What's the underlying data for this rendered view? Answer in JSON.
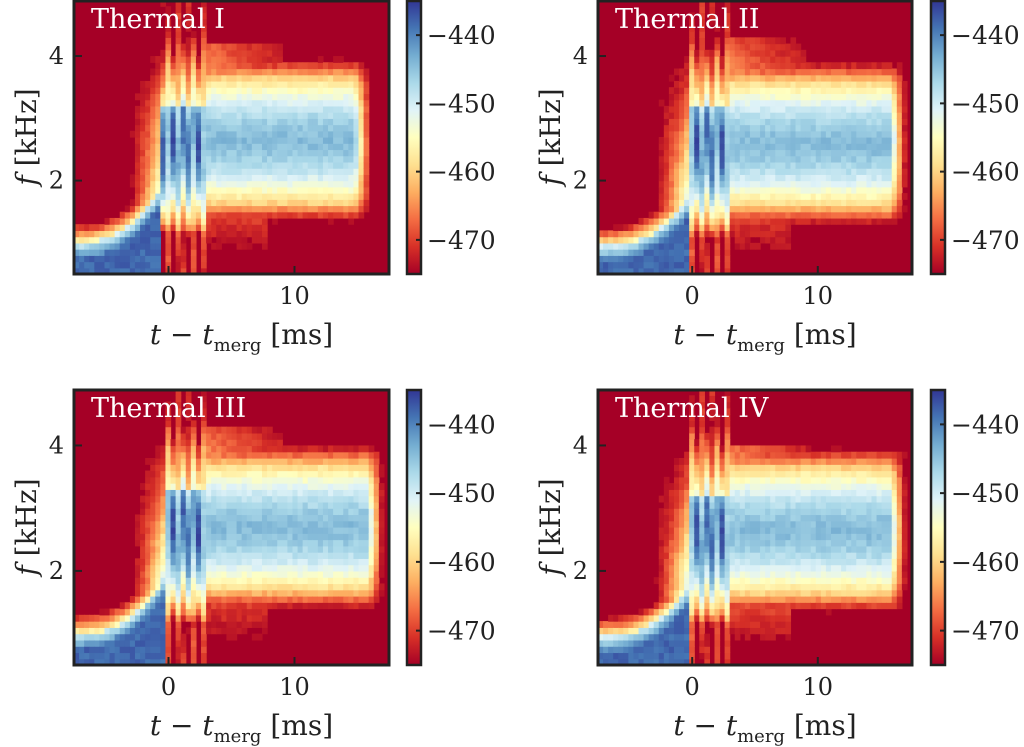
{
  "figure": {
    "colormap": [
      "#a50026",
      "#d73027",
      "#f46d43",
      "#fdae61",
      "#fee090",
      "#ffffbf",
      "#e0f3f8",
      "#abd9e9",
      "#74add1",
      "#4575b4",
      "#313695"
    ],
    "frame_color": "#222222"
  },
  "chart_data": [
    {
      "type": "heatmap",
      "title": "Thermal I",
      "xlabel_main": "t − t",
      "xlabel_sub": "merg",
      "xlabel_unit": "[ms]",
      "ylabel_main": "f",
      "ylabel_unit": "[kHz]",
      "xlim": [
        -7.5,
        17.5
      ],
      "ylim": [
        0.5,
        4.9
      ],
      "xticks": [
        0,
        10
      ],
      "xtick_labels": [
        "0",
        "10"
      ],
      "yticks": [
        2,
        4
      ],
      "ytick_labels": [
        "2",
        "4"
      ],
      "colorbar": {
        "range": [
          -475,
          -435
        ],
        "ticks": [
          -440,
          -450,
          -460,
          -470
        ],
        "tick_labels": [
          "−440",
          "−450",
          "−460",
          "−470"
        ]
      },
      "features": {
        "inspiral_start": 1.0,
        "inspiral_end": 1.9,
        "merger_time": -0.5,
        "post_center": 2.65,
        "post_halfwidth": 0.45,
        "lower_noise_edge": 1.9,
        "upper_noise_edge": 3.4,
        "burst_top": 4.2,
        "end_time": 16.0
      }
    },
    {
      "type": "heatmap",
      "title": "Thermal II",
      "xlabel_main": "t − t",
      "xlabel_sub": "merg",
      "xlabel_unit": "[ms]",
      "ylabel_main": "f",
      "ylabel_unit": "[kHz]",
      "xlim": [
        -7.5,
        17.5
      ],
      "ylim": [
        0.5,
        4.9
      ],
      "xticks": [
        0,
        10
      ],
      "xtick_labels": [
        "0",
        "10"
      ],
      "yticks": [
        2,
        4
      ],
      "ytick_labels": [
        "2",
        "4"
      ],
      "colorbar": {
        "range": [
          -475,
          -435
        ],
        "ticks": [
          -440,
          -450,
          -460,
          -470
        ],
        "tick_labels": [
          "−440",
          "−450",
          "−460",
          "−470"
        ]
      },
      "features": {
        "inspiral_start": 0.95,
        "inspiral_end": 1.7,
        "merger_time": -0.3,
        "post_center": 2.6,
        "post_halfwidth": 0.45,
        "lower_noise_edge": 1.9,
        "upper_noise_edge": 3.35,
        "burst_top": 4.3,
        "end_time": 17.0
      }
    },
    {
      "type": "heatmap",
      "title": "Thermal III",
      "xlabel_main": "t − t",
      "xlabel_sub": "merg",
      "xlabel_unit": "[ms]",
      "ylabel_main": "f",
      "ylabel_unit": "[kHz]",
      "xlim": [
        -7.5,
        17.5
      ],
      "ylim": [
        0.5,
        4.9
      ],
      "xticks": [
        0,
        10
      ],
      "xtick_labels": [
        "0",
        "10"
      ],
      "yticks": [
        2,
        4
      ],
      "ytick_labels": [
        "2",
        "4"
      ],
      "colorbar": {
        "range": [
          -475,
          -435
        ],
        "ticks": [
          -440,
          -450,
          -460,
          -470
        ],
        "tick_labels": [
          "−440",
          "−450",
          "−460",
          "−470"
        ]
      },
      "features": {
        "inspiral_start": 1.0,
        "inspiral_end": 1.9,
        "merger_time": -0.3,
        "post_center": 2.7,
        "post_halfwidth": 0.45,
        "lower_noise_edge": 1.95,
        "upper_noise_edge": 3.45,
        "burst_top": 4.3,
        "end_time": 17.0
      }
    },
    {
      "type": "heatmap",
      "title": "Thermal IV",
      "xlabel_main": "t − t",
      "xlabel_sub": "merg",
      "xlabel_unit": "[ms]",
      "ylabel_main": "f",
      "ylabel_unit": "[kHz]",
      "xlim": [
        -7.5,
        17.5
      ],
      "ylim": [
        0.5,
        4.9
      ],
      "xticks": [
        0,
        10
      ],
      "xtick_labels": [
        "0",
        "10"
      ],
      "yticks": [
        2,
        4
      ],
      "ytick_labels": [
        "2",
        "4"
      ],
      "colorbar": {
        "range": [
          -475,
          -435
        ],
        "ticks": [
          -440,
          -450,
          -460,
          -470
        ],
        "tick_labels": [
          "−440",
          "−450",
          "−460",
          "−470"
        ]
      },
      "features": {
        "inspiral_start": 0.95,
        "inspiral_end": 1.7,
        "merger_time": -0.4,
        "post_center": 2.65,
        "post_halfwidth": 0.45,
        "lower_noise_edge": 1.85,
        "upper_noise_edge": 3.35,
        "burst_top": 4.0,
        "end_time": 17.0
      }
    }
  ]
}
